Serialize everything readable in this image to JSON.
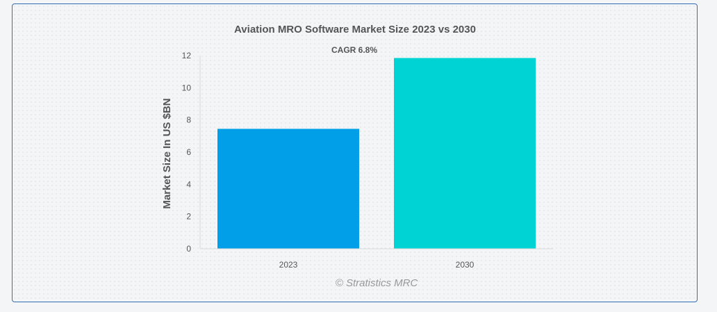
{
  "chart_data": {
    "type": "bar",
    "title": "Aviation MRO Software Market Size 2023 vs 2030",
    "annotation": "CAGR 6.8%",
    "ylabel": "Market Size In US $BN",
    "xlabel": "",
    "categories": [
      "2023",
      "2030"
    ],
    "values": [
      7.45,
      11.85
    ],
    "colors": [
      "#009fe8",
      "#00d3d3"
    ],
    "ylim": [
      0,
      12
    ],
    "yticks": [
      "0",
      "2",
      "4",
      "6",
      "8",
      "10",
      "12"
    ],
    "grid": false,
    "legend": "none"
  },
  "watermark": "© Stratistics MRC"
}
